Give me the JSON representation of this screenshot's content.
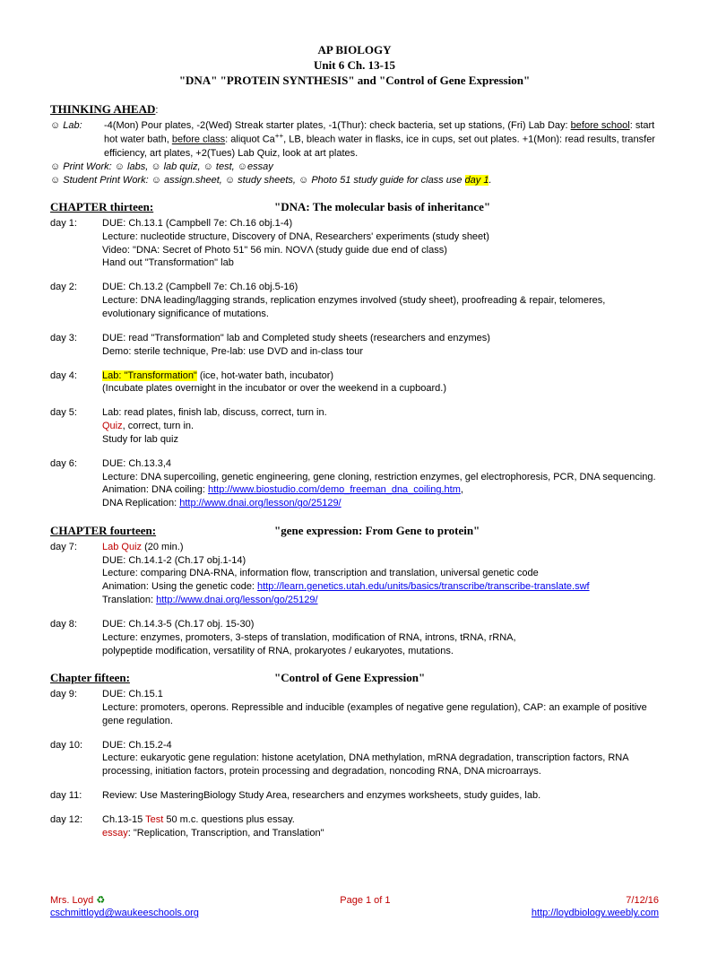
{
  "title": {
    "line1": "AP BIOLOGY",
    "line2": "Unit 6  Ch. 13-15",
    "line3": "\"DNA\" \"PROTEIN SYNTHESIS\" and \"Control of Gene Expression\""
  },
  "thinking": {
    "heading": "THINKING AHEAD",
    "colon": ":",
    "lab_label": "☺ Lab:",
    "lab_text_a": "-4(Mon) Pour plates, -2(Wed) Streak starter plates, -1(Thur): check bacteria, set up stations, (Fri) Lab Day: ",
    "lab_text_a_under": "before school",
    "lab_text_b": ": start hot water bath, ",
    "lab_text_b_under": "before class",
    "lab_text_c": ": aliquot Ca",
    "lab_text_c_sup": "++",
    "lab_text_d": ", LB, bleach water in flasks, ice in cups, set out plates.  +1(Mon): read results, transfer efficiency, art plates, +2(Tues) Lab Quiz, look at art plates.",
    "print_work": "☺ Print Work:  ☺ labs, ☺ lab quiz, ☺ test,  ☺essay",
    "student_print": "☺ Student Print Work: ☺ assign.sheet,  ☺ study sheets,  ☺ Photo 51 study guide for class use ",
    "student_print_hl": "day 1",
    "student_print_end": "."
  },
  "ch13": {
    "left": "CHAPTER thirteen:",
    "right": "\"DNA:  The molecular basis of inheritance\"",
    "day1": {
      "label": "day 1:",
      "l1": "DUE:  Ch.13.1 (Campbell 7e: Ch.16 obj.1-4)",
      "l2": "Lecture:  nucleotide structure, Discovery of DNA,  Researchers' experiments (study sheet)",
      "l3": "Video: \"DNA: Secret of Photo 51\" 56 min.  NOVΛ (study guide due end of class)",
      "l4": "Hand out \"Transformation\" lab"
    },
    "day2": {
      "label": "day 2:",
      "l1": "DUE:  Ch.13.2  (Campbell 7e: Ch.16 obj.5-16)",
      "l2": "Lecture: DNA leading/lagging strands, replication enzymes involved (study sheet), proofreading & repair, telomeres, evolutionary significance of mutations."
    },
    "day3": {
      "label": "day 3:",
      "l1": "DUE: read \"Transformation\" lab and Completed study sheets (researchers and enzymes)",
      "l2": "Demo:  sterile technique, Pre-lab:  use DVD and in-class tour"
    },
    "day4": {
      "label": "day 4:",
      "l1_hl": "Lab: \"Transformation\"",
      "l1_rest": "  (ice, hot-water bath, incubator)",
      "l2": "(Incubate plates overnight in the incubator or over the weekend in a cupboard.)"
    },
    "day5": {
      "label": "day 5:",
      "l1": "Lab:  read plates, finish lab, discuss, correct, turn in.",
      "l2_red": "Quiz",
      "l2_rest": ", correct, turn in.",
      "l3": "Study for lab quiz"
    },
    "day6": {
      "label": "day 6:",
      "l1": "DUE:  Ch.13.3,4",
      "l2": "Lecture:  DNA supercoiling, genetic engineering, gene cloning, restriction enzymes, gel electrophoresis, PCR, DNA sequencing.",
      "l3": "Animation:  DNA coiling:  ",
      "l3_link": "http://www.biostudio.com/demo_freeman_dna_coiling.htm",
      "l3_end": ",",
      "l4": "DNA Replication: ",
      "l4_link": "http://www.dnai.org/lesson/go/25129/"
    }
  },
  "ch14": {
    "left": "CHAPTER fourteen:",
    "right": "\"gene expression: From Gene to protein\"",
    "day7": {
      "label": "day 7:",
      "l1_red": "Lab Quiz",
      "l1_rest": "  (20 min.)",
      "l2": "DUE:  Ch.14.1-2  (Ch.17 obj.1-14)",
      "l3": "Lecture:  comparing DNA-RNA, information flow, transcription and translation, universal genetic code",
      "l4": "Animation:  Using the genetic code:  ",
      "l4_link": "http://learn.genetics.utah.edu/units/basics/transcribe/transcribe-translate.swf",
      "l5": "Translation: ",
      "l5_link": "http://www.dnai.org/lesson/go/25129/"
    },
    "day8": {
      "label": "day 8:",
      "l1": "DUE:  Ch.14.3-5  (Ch.17 obj. 15-30)",
      "l2": "Lecture:  enzymes, promoters, 3-steps of translation, modification of RNA, introns, tRNA, rRNA,",
      "l3": "polypeptide modification, versatility of RNA, prokaryotes / eukaryotes, mutations."
    }
  },
  "ch15": {
    "left": "Chapter fifteen:",
    "right": "\"Control of Gene Expression\"",
    "day9": {
      "label": "day 9:",
      "l1": "DUE: Ch.15.1",
      "l2": "Lecture:  promoters, operons. Repressible and inducible (examples of negative gene regulation), CAP: an example of positive gene regulation."
    },
    "day10": {
      "label": "day 10:",
      "l1": "DUE: Ch.15.2-4",
      "l2": "Lecture:  eukaryotic gene regulation: histone acetylation, DNA methylation, mRNA degradation, transcription factors, RNA processing, initiation factors, protein processing and degradation, noncoding RNA, DNA microarrays."
    },
    "day11": {
      "label": "day 11:",
      "l1": "Review:  Use MasteringBiology Study Area, researchers and enzymes worksheets, study guides, lab."
    },
    "day12": {
      "label": "day 12:",
      "l1_a": "Ch.13-15  ",
      "l1_red": "Test",
      "l1_b": "  50 m.c. questions plus essay.",
      "l2_red": "essay",
      "l2_rest": ":  \"Replication, Transcription, and Translation\""
    }
  },
  "footer": {
    "name": "Mrs. Loyd ",
    "earth": "♻",
    "email": "cschmittloyd@waukeeschools.org",
    "page": "Page 1 of 1",
    "date": "7/12/16",
    "url": "http://loydbiology.weebly.com"
  }
}
